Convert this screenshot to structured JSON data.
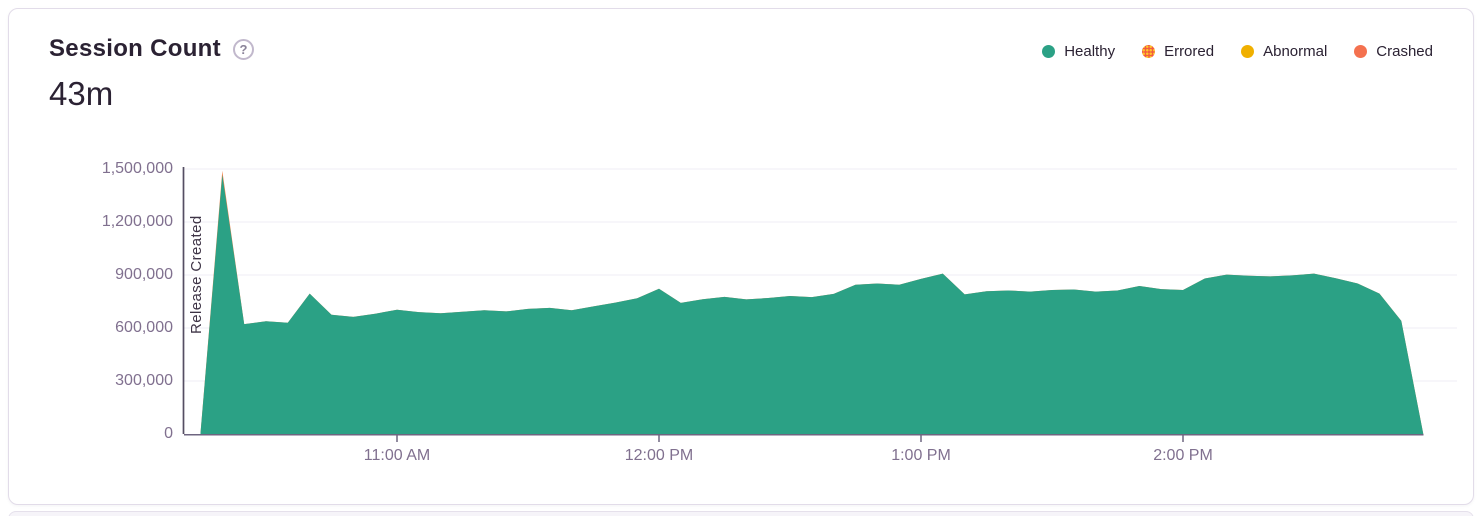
{
  "header": {
    "title": "Session Count",
    "help_icon": "?",
    "value": "43m"
  },
  "colors": {
    "healthy": "#2BA185",
    "errored_band": "#F4844B",
    "errored_dot_base": "#F25B40",
    "errored_dot_speckle": "#FFC227",
    "abnormal": "#F0B000",
    "crashed": "#F4714F",
    "axis": "#6E6580",
    "grid": "#EFECF4",
    "tick_label": "#80708F",
    "release_line": "#554E63"
  },
  "chart_data": {
    "type": "area",
    "title": "Session Count",
    "stacked": true,
    "grid": true,
    "legend_position": "top-right",
    "ylim": [
      0,
      1500000
    ],
    "yticks": [
      {
        "value": 0,
        "label": "0"
      },
      {
        "value": 300000,
        "label": "300,000"
      },
      {
        "value": 600000,
        "label": "600,000"
      },
      {
        "value": 900000,
        "label": "900,000"
      },
      {
        "value": 1200000,
        "label": "1,200,000"
      },
      {
        "value": 1500000,
        "label": "1,500,000"
      }
    ],
    "xticks": [
      {
        "time": "11:00",
        "label": "11:00 AM"
      },
      {
        "time": "12:00",
        "label": "12:00 PM"
      },
      {
        "time": "13:00",
        "label": "1:00 PM"
      },
      {
        "time": "14:00",
        "label": "2:00 PM"
      }
    ],
    "annotation": {
      "label": "Release Created",
      "time": "10:11"
    },
    "x": [
      "10:15",
      "10:20",
      "10:25",
      "10:30",
      "10:35",
      "10:40",
      "10:45",
      "10:50",
      "10:55",
      "11:00",
      "11:05",
      "11:10",
      "11:15",
      "11:20",
      "11:25",
      "11:30",
      "11:35",
      "11:40",
      "11:45",
      "11:50",
      "11:55",
      "12:00",
      "12:05",
      "12:10",
      "12:15",
      "12:20",
      "12:25",
      "12:30",
      "12:35",
      "12:40",
      "12:45",
      "12:50",
      "12:55",
      "13:00",
      "13:05",
      "13:10",
      "13:15",
      "13:20",
      "13:25",
      "13:30",
      "13:35",
      "13:40",
      "13:45",
      "13:50",
      "13:55",
      "14:00",
      "14:05",
      "14:10",
      "14:15",
      "14:20",
      "14:25",
      "14:30",
      "14:35",
      "14:40",
      "14:45",
      "14:50",
      "14:55"
    ],
    "series": [
      {
        "name": "Healthy",
        "color": "#2BA185",
        "values": [
          5000,
          1468000,
          622000,
          638000,
          630000,
          795000,
          675000,
          663000,
          681000,
          703000,
          690000,
          684000,
          692000,
          700000,
          694000,
          708000,
          714000,
          701000,
          722000,
          744000,
          768000,
          822000,
          742000,
          763000,
          776000,
          762000,
          770000,
          781000,
          775000,
          793000,
          845000,
          852000,
          845000,
          878000,
          908000,
          790000,
          808000,
          812000,
          806000,
          815000,
          818000,
          806000,
          812000,
          838000,
          820000,
          815000,
          880000,
          902000,
          896000,
          892000,
          898000,
          908000,
          882000,
          852000,
          795000,
          640000,
          3000
        ]
      },
      {
        "name": "Errored",
        "color": "#F25B40",
        "values": [
          0,
          22000,
          0,
          0,
          0,
          0,
          0,
          0,
          0,
          0,
          0,
          0,
          0,
          0,
          0,
          0,
          0,
          0,
          0,
          0,
          0,
          0,
          0,
          0,
          0,
          0,
          0,
          0,
          0,
          0,
          0,
          0,
          0,
          0,
          0,
          0,
          0,
          0,
          0,
          0,
          0,
          0,
          0,
          0,
          0,
          0,
          0,
          0,
          0,
          0,
          0,
          0,
          0,
          0,
          0,
          0,
          0
        ]
      }
    ],
    "legend": {
      "entries": [
        {
          "label": "Healthy",
          "color": "#2BA185",
          "pattern": "solid"
        },
        {
          "label": "Errored",
          "color": "#F25B40",
          "pattern": "yellow-dots",
          "dot_color": "#FFC227"
        },
        {
          "label": "Abnormal",
          "color": "#F0B000",
          "pattern": "solid"
        },
        {
          "label": "Crashed",
          "color": "#F4714F",
          "pattern": "solid"
        }
      ]
    }
  }
}
